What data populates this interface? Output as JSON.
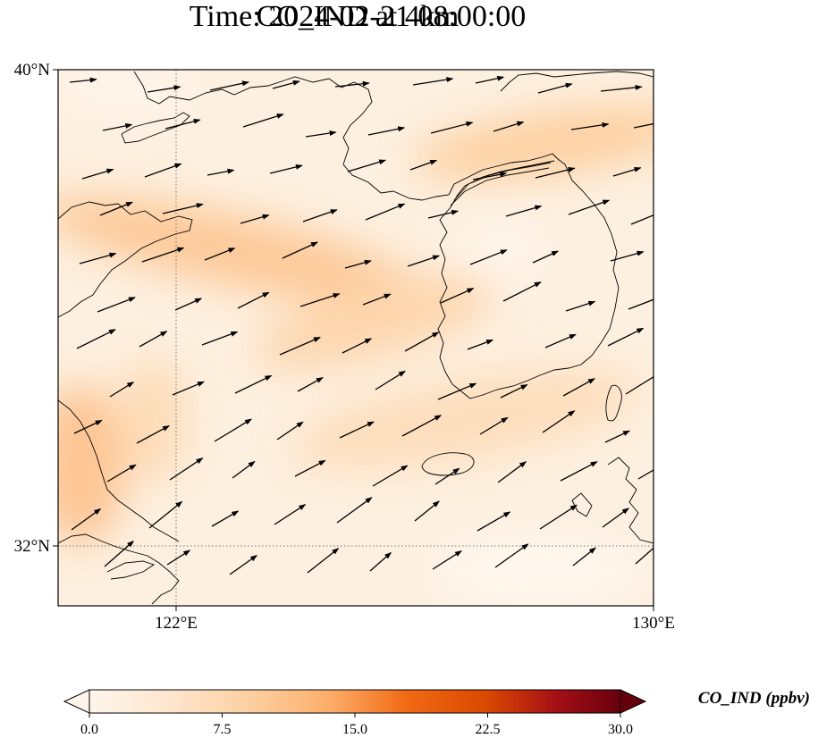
{
  "title": {
    "line1": "CO_IND at 4km",
    "line2": "Time: 2024-02-21 08:00:00"
  },
  "map": {
    "lat_labels": [
      "40°N",
      "32°N"
    ],
    "lon_labels": [
      "122°E",
      "130°E"
    ],
    "extent": {
      "lon_min": 120.4,
      "lon_max": 130.0,
      "lat_min": 31.0,
      "lat_max": 40.0
    },
    "gridlines": {
      "lons": [
        122
      ],
      "lats": [
        32
      ],
      "style": "dotted"
    },
    "field_color_low": "#fff5eb",
    "field_color_high": "#fdbf86",
    "coastline_color": "#000000",
    "wind_vectors": "prevailing westerly to west-southwesterly flow"
  },
  "colorbar": {
    "label": "CO_IND (ppbv)",
    "ticks": [
      "0.0",
      "7.5",
      "15.0",
      "22.5",
      "30.0"
    ],
    "range": [
      0,
      30
    ],
    "extend": "both",
    "colors": [
      "#fff5eb",
      "#fee6ce",
      "#fdd0a2",
      "#fdae6b",
      "#f16913",
      "#d94801",
      "#a50f15",
      "#67000d"
    ]
  }
}
